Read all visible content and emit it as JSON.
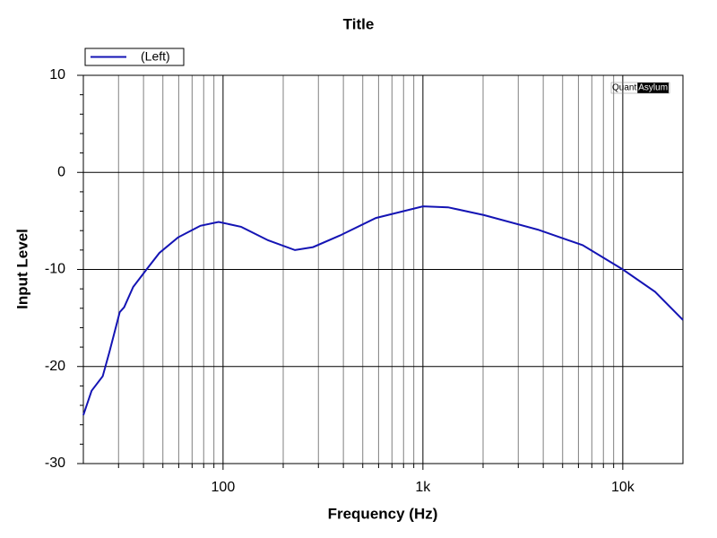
{
  "chart_data": {
    "type": "line",
    "title": "Title",
    "xlabel": "Frequency (Hz)",
    "ylabel": "Input Level",
    "xscale": "log",
    "grid": true,
    "legend": "top-left",
    "watermark": {
      "left": "Quant",
      "right": "Asylum"
    },
    "xlim": [
      20,
      20000
    ],
    "ylim": [
      -30,
      10
    ],
    "xticks": [
      100,
      {
        "value": 1000,
        "label": "1k"
      },
      {
        "value": 10000,
        "label": "10k"
      }
    ],
    "xminorticks": [
      30,
      40,
      50,
      60,
      70,
      80,
      90,
      200,
      300,
      400,
      500,
      600,
      700,
      800,
      900,
      2000,
      3000,
      4000,
      5000,
      6000,
      7000,
      8000,
      9000
    ],
    "yticks": [
      -30,
      -20,
      -10,
      0,
      10
    ],
    "yminorticks": [
      -28,
      -26,
      -24,
      -22,
      -18,
      -16,
      -14,
      -12,
      -8,
      -6,
      -4,
      -2,
      2,
      4,
      6,
      8
    ],
    "x": [
      20,
      22,
      25,
      27,
      30.4,
      32,
      35.5,
      41.4,
      48,
      59.5,
      77,
      95,
      123,
      168,
      229,
      282,
      385,
      582,
      1000,
      1336,
      2020,
      3760,
      6300,
      10000,
      14500,
      20000
    ],
    "series": [
      {
        "name": "(Left)",
        "color": "#1414b4",
        "values": [
          -25,
          -22.5,
          -21,
          -18.5,
          -14.4,
          -13.9,
          -11.8,
          -10,
          -8.3,
          -6.7,
          -5.5,
          -5.1,
          -5.6,
          -7,
          -8,
          -7.7,
          -6.5,
          -4.7,
          -3.5,
          -3.6,
          -4.4,
          -5.9,
          -7.5,
          -10,
          -12.3,
          -15.2
        ]
      }
    ]
  }
}
